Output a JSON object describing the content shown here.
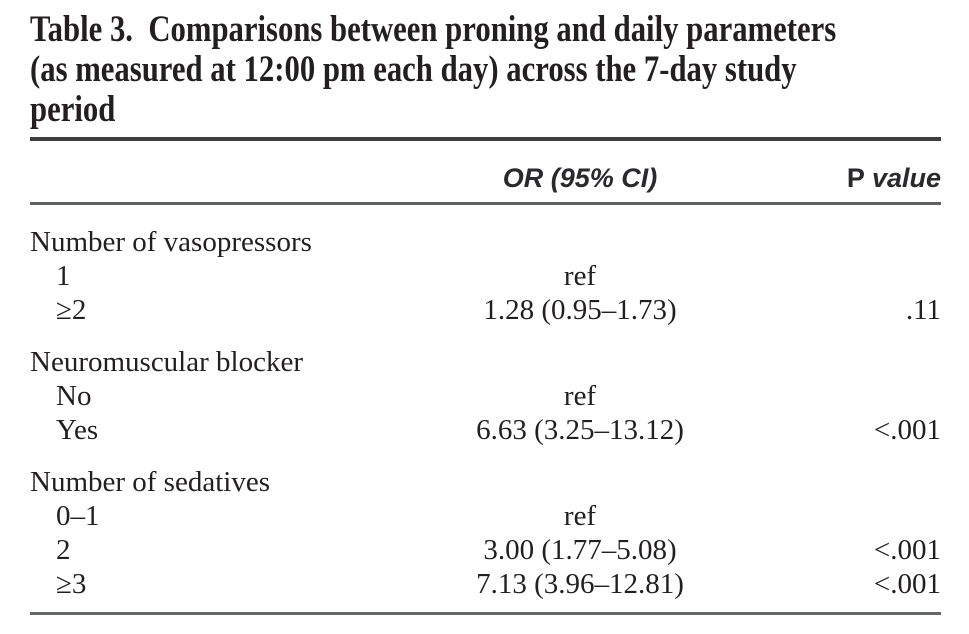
{
  "page": {
    "background": "#ffffff",
    "text_color": "#231f20",
    "rule_top_color": "#3e3c3d",
    "rule_thin_color": "#5e5f61"
  },
  "table": {
    "title": {
      "lines": [
        "Table 3.  Comparisons between proning and daily parameters",
        "(as measured at 12:00 pm each day) across the 7-day study",
        "period"
      ],
      "full_text": "Table 3. Comparisons between proning and daily parameters (as measured at 12:00 pm each day) across the 7-day study period"
    },
    "header": {
      "or_label": "OR (95% CI)",
      "p_label_roman": "P",
      "p_label_italic": "value"
    },
    "rows": [
      {
        "type": "group",
        "label": "Number of vasopressors",
        "or": "",
        "p": ""
      },
      {
        "type": "item",
        "label": "1",
        "or": "ref",
        "p": ""
      },
      {
        "type": "item",
        "label": "≥2",
        "or": "1.28 (0.95–1.73)",
        "p": ".11"
      },
      {
        "type": "group",
        "label": "Neuromuscular blocker",
        "or": "",
        "p": ""
      },
      {
        "type": "item",
        "label": "No",
        "or": "ref",
        "p": ""
      },
      {
        "type": "item",
        "label": "Yes",
        "or": "6.63 (3.25–13.12)",
        "p": "<.001"
      },
      {
        "type": "group",
        "label": "Number of sedatives",
        "or": "",
        "p": ""
      },
      {
        "type": "item",
        "label": "0–1",
        "or": "ref",
        "p": ""
      },
      {
        "type": "item",
        "label": "2",
        "or": "3.00 (1.77–5.08)",
        "p": "<.001"
      },
      {
        "type": "item",
        "label": "≥3",
        "or": "7.13 (3.96–12.81)",
        "p": "<.001"
      }
    ]
  }
}
